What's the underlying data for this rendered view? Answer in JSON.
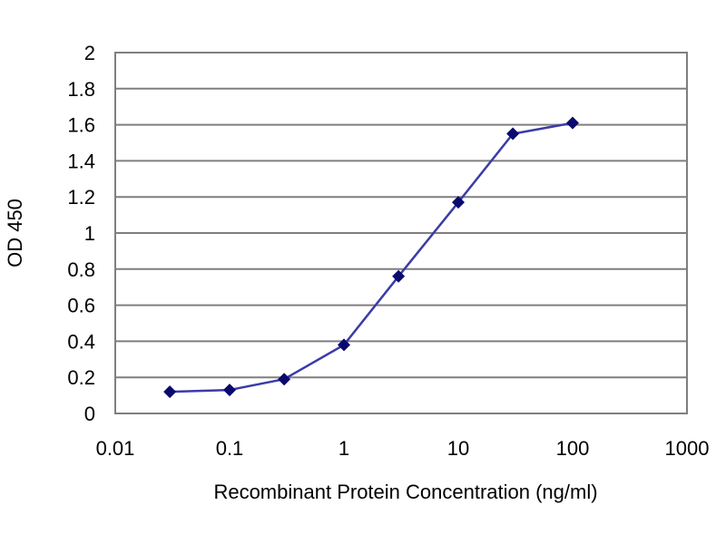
{
  "chart_data": {
    "type": "line",
    "title": "",
    "xlabel": "Recombinant Protein Concentration (ng/ml)",
    "ylabel": "OD 450",
    "x_scale": "log",
    "xlim": [
      0.01,
      1000
    ],
    "ylim": [
      0,
      2
    ],
    "x_ticks": [
      0.01,
      0.1,
      1,
      10,
      100,
      1000
    ],
    "x_tick_labels": [
      "0.01",
      "0.1",
      "1",
      "10",
      "100",
      "1000"
    ],
    "y_ticks": [
      0,
      0.2,
      0.4,
      0.6,
      0.8,
      1,
      1.2,
      1.4,
      1.6,
      1.8,
      2
    ],
    "y_tick_labels": [
      "0",
      "0.2",
      "0.4",
      "0.6",
      "0.8",
      "1",
      "1.2",
      "1.4",
      "1.6",
      "1.8",
      "2"
    ],
    "grid": "horizontal",
    "legend": "none",
    "series": [
      {
        "x": [
          0.03,
          0.1,
          0.3,
          1,
          3,
          10,
          30,
          100
        ],
        "y": [
          0.12,
          0.13,
          0.19,
          0.38,
          0.76,
          1.17,
          1.55,
          1.61
        ],
        "color": "#1a1a8c",
        "marker": "diamond"
      }
    ],
    "colors": {
      "line": "#3b3ba8",
      "marker": "#0a0a6e",
      "grid": "#7f7f7f",
      "frame": "#7f7f7f"
    }
  }
}
